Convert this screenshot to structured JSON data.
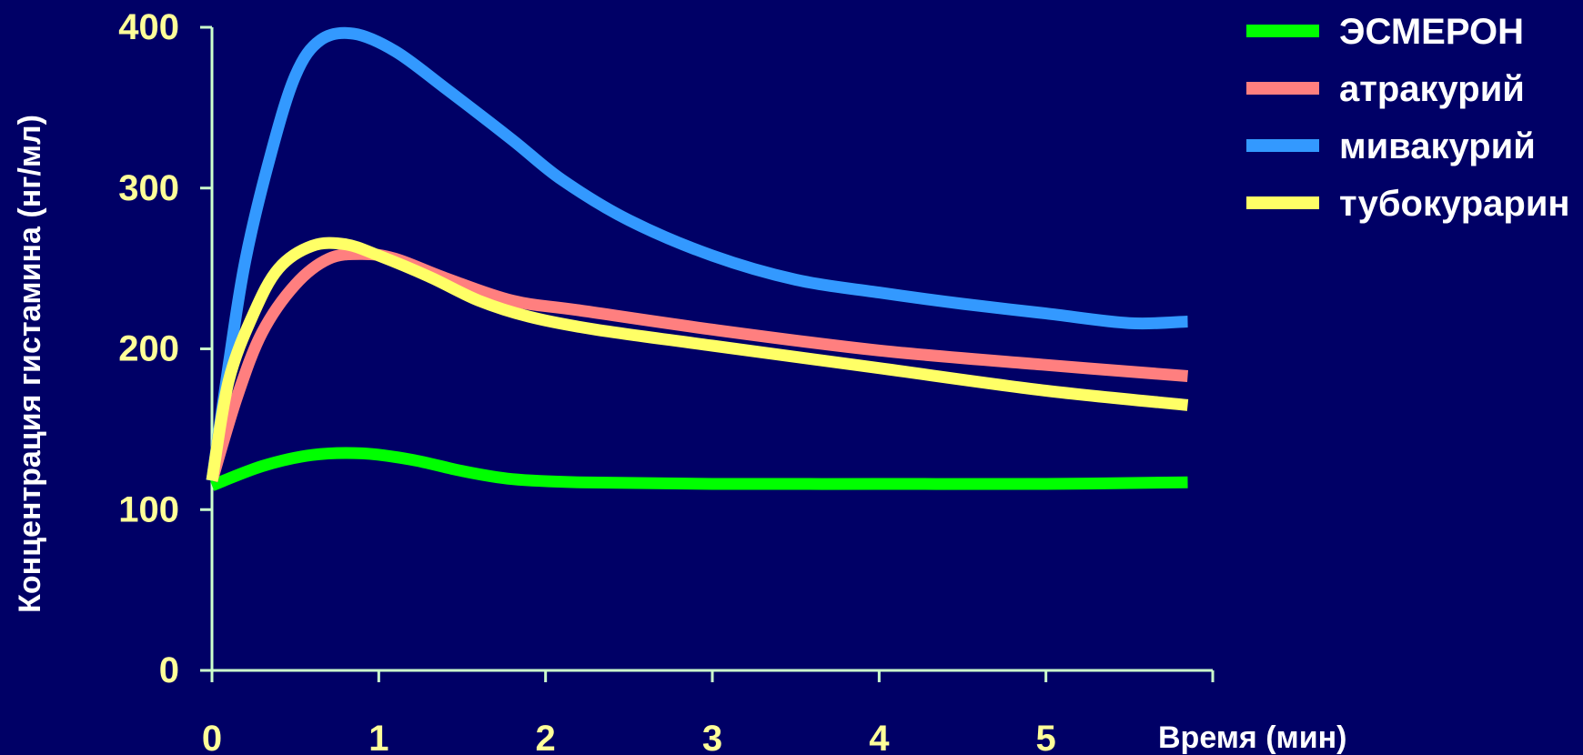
{
  "colors": {
    "background": "#000066",
    "axis": "#ccffcc",
    "tick_text": "#ffff99",
    "title_text": "#ffffff"
  },
  "chart_data": {
    "type": "line",
    "xlabel": "Время (мин)",
    "ylabel": "Концентрация гистамина (нг/мл)",
    "xlim": [
      0,
      6
    ],
    "ylim": [
      0,
      400
    ],
    "xticks": [
      0,
      1,
      2,
      3,
      4,
      5
    ],
    "yticks": [
      0,
      100,
      200,
      300,
      400
    ],
    "grid": false,
    "legend_position": "top-right",
    "series": [
      {
        "name": "ЭСМЕРОН",
        "color": "#00ff00",
        "points": [
          [
            0,
            115
          ],
          [
            0.3,
            127
          ],
          [
            0.6,
            134
          ],
          [
            0.9,
            135
          ],
          [
            1.2,
            131
          ],
          [
            1.5,
            124
          ],
          [
            1.8,
            119
          ],
          [
            2.2,
            117
          ],
          [
            3,
            116
          ],
          [
            4,
            116
          ],
          [
            5,
            116
          ],
          [
            5.85,
            117
          ]
        ]
      },
      {
        "name": "атракурий",
        "color": "#ff7f7f",
        "points": [
          [
            0,
            118
          ],
          [
            0.15,
            170
          ],
          [
            0.3,
            210
          ],
          [
            0.5,
            240
          ],
          [
            0.7,
            256
          ],
          [
            0.9,
            259
          ],
          [
            1.1,
            256
          ],
          [
            1.4,
            244
          ],
          [
            1.8,
            230
          ],
          [
            2.2,
            224
          ],
          [
            3,
            212
          ],
          [
            4,
            199
          ],
          [
            5,
            190
          ],
          [
            5.85,
            183
          ]
        ]
      },
      {
        "name": "мивакурий",
        "color": "#3399ff",
        "points": [
          [
            0,
            118
          ],
          [
            0.1,
            190
          ],
          [
            0.2,
            255
          ],
          [
            0.35,
            320
          ],
          [
            0.5,
            370
          ],
          [
            0.65,
            392
          ],
          [
            0.85,
            396
          ],
          [
            1.1,
            385
          ],
          [
            1.4,
            362
          ],
          [
            1.8,
            330
          ],
          [
            2.1,
            305
          ],
          [
            2.5,
            280
          ],
          [
            3,
            258
          ],
          [
            3.5,
            243
          ],
          [
            4,
            235
          ],
          [
            4.5,
            228
          ],
          [
            5,
            222
          ],
          [
            5.5,
            216
          ],
          [
            5.85,
            217
          ]
        ]
      },
      {
        "name": "тубокурарин",
        "color": "#ffff66",
        "points": [
          [
            0,
            118
          ],
          [
            0.1,
            180
          ],
          [
            0.25,
            222
          ],
          [
            0.4,
            250
          ],
          [
            0.6,
            264
          ],
          [
            0.8,
            265
          ],
          [
            1,
            258
          ],
          [
            1.3,
            245
          ],
          [
            1.6,
            230
          ],
          [
            1.9,
            220
          ],
          [
            2.3,
            212
          ],
          [
            3,
            202
          ],
          [
            4,
            188
          ],
          [
            5,
            174
          ],
          [
            5.85,
            165
          ]
        ]
      }
    ]
  }
}
